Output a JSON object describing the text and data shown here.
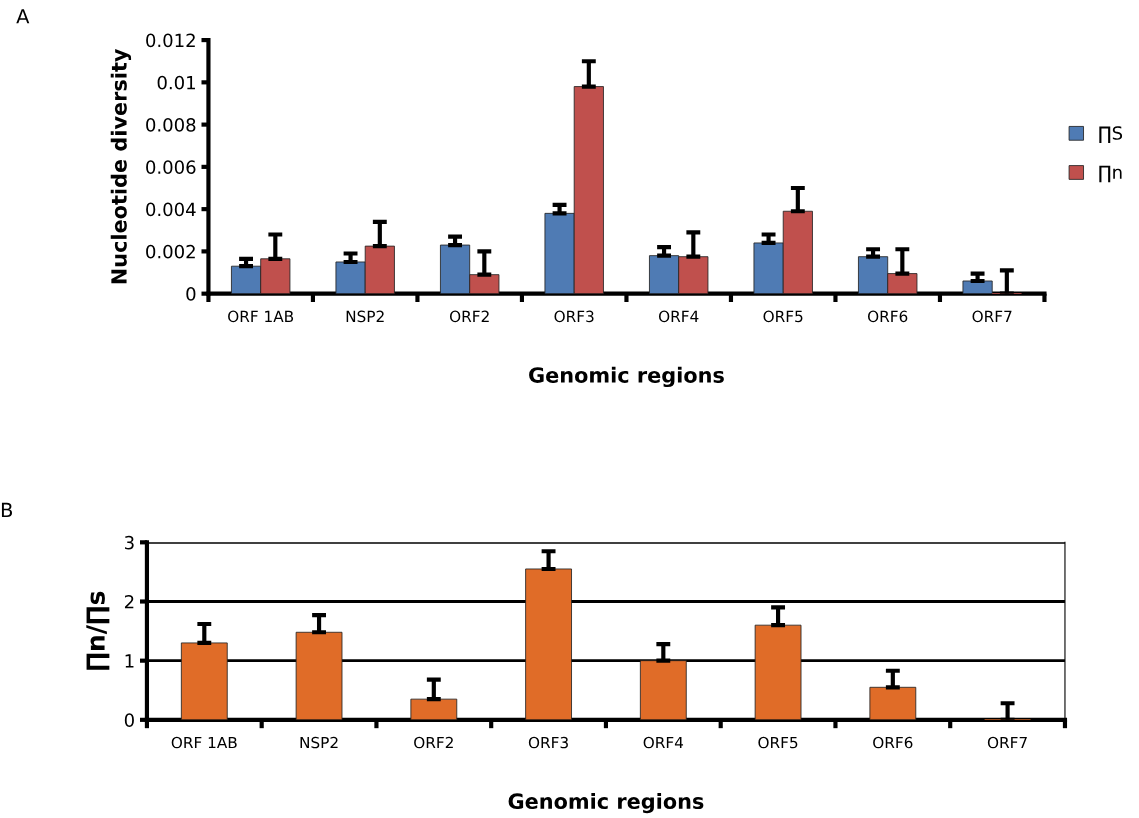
{
  "chart_data": [
    {
      "type": "bar",
      "annotations": [
        "A"
      ],
      "xlabel": "Genomic regions",
      "ylabel": "Nucleotide diversity",
      "categories": [
        "ORF 1AB",
        "NSP2",
        "ORF2",
        "ORF3",
        "ORF4",
        "ORF5",
        "ORF6",
        "ORF7"
      ],
      "series": [
        {
          "name": "∏S",
          "color": "#4f7bb4",
          "values": [
            0.0013,
            0.0015,
            0.0023,
            0.0038,
            0.0018,
            0.0024,
            0.00175,
            0.0006
          ],
          "errors": [
            [
              0.0013,
              0.00165
            ],
            [
              0.0015,
              0.0019
            ],
            [
              0.0023,
              0.0027
            ],
            [
              0.0038,
              0.0042
            ],
            [
              0.0018,
              0.0022
            ],
            [
              0.0024,
              0.0028
            ],
            [
              0.00175,
              0.0021
            ],
            [
              0.0006,
              0.00095
            ]
          ]
        },
        {
          "name": "∏n",
          "color": "#c0504d",
          "values": [
            0.00165,
            0.00225,
            0.0009,
            0.0098,
            0.00175,
            0.0039,
            0.00095,
            0
          ],
          "errors": [
            [
              0.00165,
              0.0028
            ],
            [
              0.00225,
              0.0034
            ],
            [
              0.0009,
              0.002
            ],
            [
              0.0098,
              0.011
            ],
            [
              0.00175,
              0.0029
            ],
            [
              0.0039,
              0.005
            ],
            [
              0.00095,
              0.0021
            ],
            [
              0,
              0.0011
            ]
          ]
        }
      ],
      "ylim": [
        0,
        0.012
      ],
      "yticks": [
        0,
        0.002,
        0.004,
        0.006,
        0.008,
        0.01,
        0.012
      ],
      "grid": false,
      "legend": "right"
    },
    {
      "type": "bar",
      "annotations": [
        "B"
      ],
      "xlabel": "Genomic regions",
      "ylabel": "∏n/∏s",
      "categories": [
        "ORF 1AB",
        "NSP2",
        "ORF2",
        "ORF3",
        "ORF4",
        "ORF5",
        "ORF6",
        "ORF7"
      ],
      "series": [
        {
          "color": "#e06c28",
          "values": [
            1.3,
            1.48,
            0.35,
            2.55,
            1.0,
            1.6,
            0.55,
            0
          ],
          "errors": [
            [
              1.3,
              1.62
            ],
            [
              1.48,
              1.77
            ],
            [
              0.35,
              0.68
            ],
            [
              2.55,
              2.85
            ],
            [
              1.0,
              1.28
            ],
            [
              1.6,
              1.9
            ],
            [
              0.55,
              0.83
            ],
            [
              0,
              0.28
            ]
          ]
        }
      ],
      "ylim": [
        0,
        3
      ],
      "yticks": [
        0,
        1,
        2,
        3
      ],
      "grid": "y",
      "legend": false
    }
  ]
}
